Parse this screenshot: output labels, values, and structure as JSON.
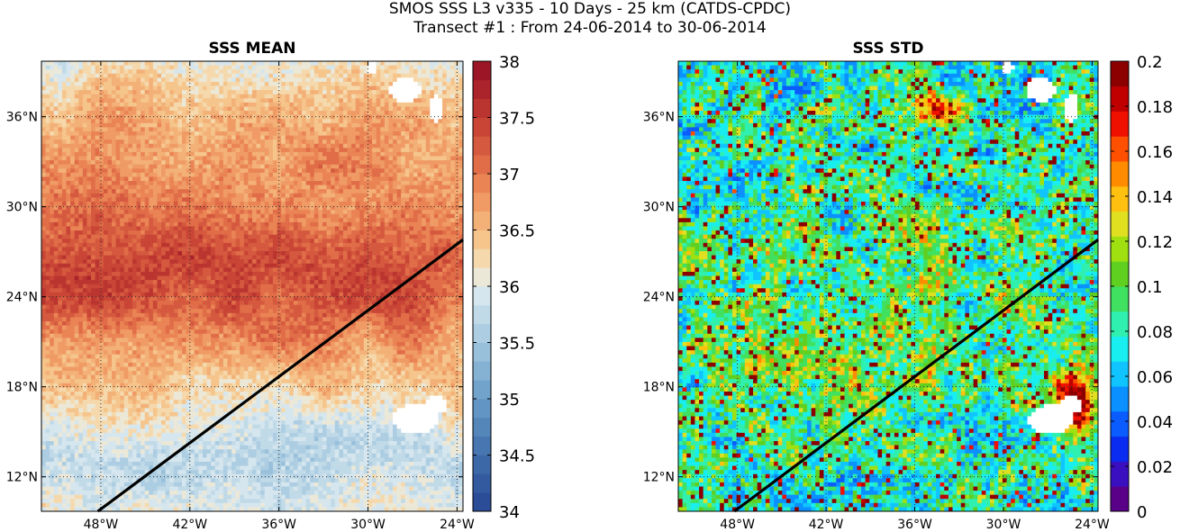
{
  "figure": {
    "title_line1": "SMOS SSS L3 v335 - 10 Days - 25 km (CATDS-CPDC)",
    "title_line2": "Transect #1 : From 24-06-2014 to 30-06-2014"
  },
  "chart_data": [
    {
      "type": "heatmap",
      "title": "SSS MEAN",
      "xlabel": "",
      "ylabel": "",
      "x_ticks": [
        "48°W",
        "42°W",
        "36°W",
        "30°W",
        "24°W"
      ],
      "y_ticks": [
        "12°N",
        "18°N",
        "24°N",
        "30°N",
        "36°N"
      ],
      "xlim": [
        -52.0,
        -23.6
      ],
      "ylim": [
        9.7,
        39.7
      ],
      "colorbar": {
        "range": [
          34,
          38
        ],
        "ticks": [
          "34",
          "34.5",
          "35",
          "35.5",
          "36",
          "36.5",
          "37",
          "37.5",
          "38"
        ],
        "colors": [
          "#2b4c96",
          "#335a9e",
          "#3d68a7",
          "#4776b0",
          "#5486ba",
          "#6295c3",
          "#72a4cb",
          "#85b2d3",
          "#98c0db",
          "#acCde2",
          "#c1dae8",
          "#d6e6ee",
          "#ece8d8",
          "#f5d9ad",
          "#f5c58c",
          "#f3b178",
          "#f09b65",
          "#ea8455",
          "#e06d48",
          "#d5593e",
          "#c94536",
          "#bb3530",
          "#ab242b",
          "#9c1527"
        ]
      },
      "transect": {
        "start": {
          "lon": -48.2,
          "lat": 9.7
        },
        "end": {
          "lon": -23.6,
          "lat": 27.8
        }
      },
      "blank_color": "#ffffff"
    },
    {
      "type": "heatmap",
      "title": "SSS STD",
      "xlabel": "",
      "ylabel": "",
      "x_ticks": [
        "48°W",
        "42°W",
        "36°W",
        "30°W",
        "24°W"
      ],
      "y_ticks": [
        "12°N",
        "18°N",
        "24°N",
        "30°N",
        "36°N"
      ],
      "xlim": [
        -52.0,
        -23.6
      ],
      "ylim": [
        9.7,
        39.7
      ],
      "colorbar": {
        "range": [
          0,
          0.2
        ],
        "ticks": [
          "0",
          "0.02",
          "0.04",
          "0.06",
          "0.08",
          "0.1",
          "0.12",
          "0.14",
          "0.16",
          "0.18",
          "0.2"
        ],
        "colors": [
          "#5a0088",
          "#3a0fc0",
          "#0a2cf0",
          "#0a5cff",
          "#0a90ff",
          "#10c4ff",
          "#18eef0",
          "#30f0b0",
          "#40e060",
          "#60d020",
          "#a0e010",
          "#e0e020",
          "#ffc010",
          "#ff8c00",
          "#ff5000",
          "#f01000",
          "#c00000",
          "#8c0000"
        ]
      },
      "transect": {
        "start": {
          "lon": -48.2,
          "lat": 9.7
        },
        "end": {
          "lon": -23.6,
          "lat": 27.8
        }
      },
      "blank_color": "#ffffff"
    }
  ]
}
